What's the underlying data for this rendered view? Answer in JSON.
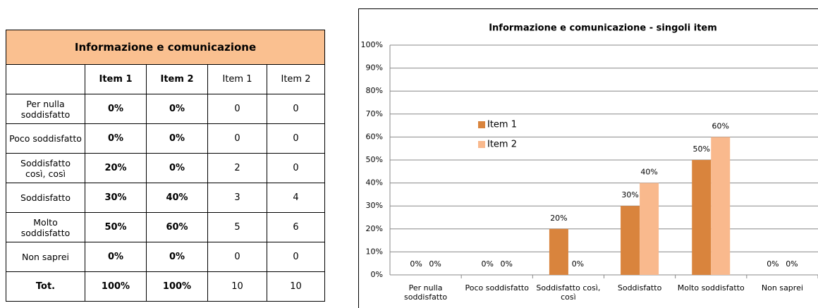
{
  "table": {
    "title": "Informazione e comunicazione",
    "columns": [
      "Item 1",
      "Item 2",
      "Item 1",
      "Item 2"
    ],
    "rows": [
      {
        "label": "Per nulla soddisfatto",
        "cells": [
          "0%",
          "0%",
          "0",
          "0"
        ]
      },
      {
        "label": "Poco soddisfatto",
        "cells": [
          "0%",
          "0%",
          "0",
          "0"
        ]
      },
      {
        "label": "Soddisfatto così, così",
        "cells": [
          "20%",
          "0%",
          "2",
          "0"
        ]
      },
      {
        "label": "Soddisfatto",
        "cells": [
          "30%",
          "40%",
          "3",
          "4"
        ]
      },
      {
        "label": "Molto soddisfatto",
        "cells": [
          "50%",
          "60%",
          "5",
          "6"
        ]
      },
      {
        "label": "Non saprei",
        "cells": [
          "0%",
          "0%",
          "0",
          "0"
        ]
      },
      {
        "label": "Tot.",
        "cells": [
          "100%",
          "100%",
          "10",
          "10"
        ]
      }
    ]
  },
  "chart_data": {
    "type": "bar",
    "title": "Informazione e comunicazione - singoli item",
    "categories": [
      "Per nulla soddisfatto",
      "Poco soddisfatto",
      "Soddisfatto così, così",
      "Soddisfatto",
      "Molto soddisfatto",
      "Non saprei"
    ],
    "series": [
      {
        "name": "Item 1",
        "color": "#d9843d",
        "values": [
          0,
          0,
          20,
          30,
          50,
          0
        ],
        "value_labels": [
          "0%",
          "0%",
          "20%",
          "30%",
          "50%",
          "0%"
        ]
      },
      {
        "name": "Item 2",
        "color": "#f9b98d",
        "values": [
          0,
          0,
          0,
          40,
          60,
          0
        ],
        "value_labels": [
          "0%",
          "0%",
          "0%",
          "40%",
          "60%",
          "0%"
        ]
      }
    ],
    "ylim": [
      0,
      100
    ],
    "yticks": [
      {
        "value": 0,
        "label": "0%"
      },
      {
        "value": 10,
        "label": "10%"
      },
      {
        "value": 20,
        "label": "20%"
      },
      {
        "value": 30,
        "label": "30%"
      },
      {
        "value": 40,
        "label": "40%"
      },
      {
        "value": 50,
        "label": "50%"
      },
      {
        "value": 60,
        "label": "60%"
      },
      {
        "value": 70,
        "label": "70%"
      },
      {
        "value": 80,
        "label": "80%"
      },
      {
        "value": 90,
        "label": "90%"
      },
      {
        "value": 100,
        "label": "100%"
      }
    ],
    "grid": true,
    "legend_position": "center left"
  }
}
